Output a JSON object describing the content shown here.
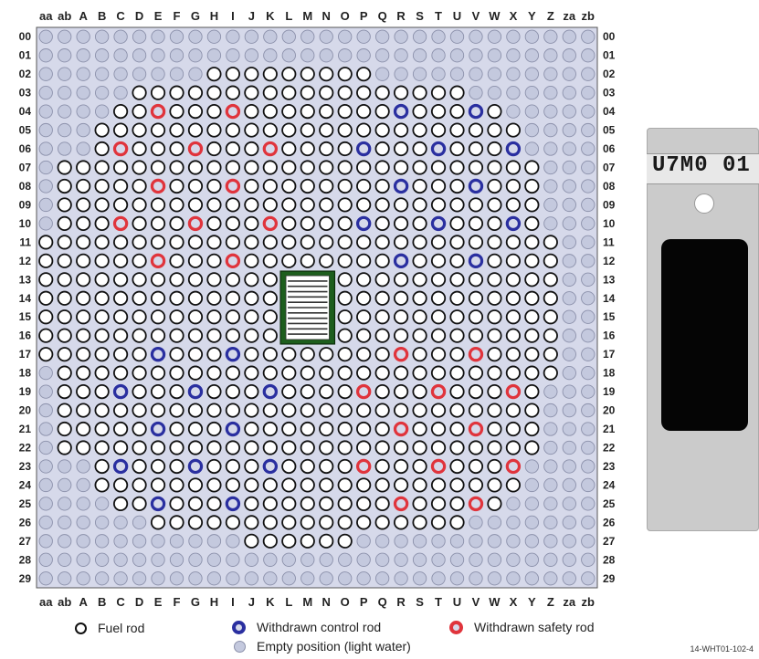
{
  "columns": [
    "aa",
    "ab",
    "A",
    "B",
    "C",
    "D",
    "E",
    "F",
    "G",
    "H",
    "I",
    "J",
    "K",
    "L",
    "M",
    "N",
    "O",
    "P",
    "Q",
    "R",
    "S",
    "T",
    "U",
    "V",
    "W",
    "X",
    "Y",
    "Z",
    "za",
    "zb"
  ],
  "rows": [
    "00",
    "01",
    "02",
    "03",
    "04",
    "05",
    "06",
    "07",
    "08",
    "09",
    "10",
    "11",
    "12",
    "13",
    "14",
    "15",
    "16",
    "17",
    "18",
    "19",
    "20",
    "21",
    "22",
    "23",
    "24",
    "25",
    "26",
    "27",
    "28",
    "29"
  ],
  "fuel_span_by_row": {
    "02": [
      "H",
      "P"
    ],
    "03": [
      "D",
      "U"
    ],
    "04": [
      "C",
      "W"
    ],
    "05": [
      "B",
      "X"
    ],
    "06": [
      "B",
      "X"
    ],
    "07": [
      "ab",
      "Y"
    ],
    "08": [
      "ab",
      "Y"
    ],
    "09": [
      "ab",
      "Y"
    ],
    "10": [
      "ab",
      "Y"
    ],
    "11": [
      "aa",
      "Z"
    ],
    "12": [
      "aa",
      "Z"
    ],
    "13": [
      "aa",
      "Z"
    ],
    "14": [
      "aa",
      "Z"
    ],
    "15": [
      "aa",
      "Z"
    ],
    "16": [
      "aa",
      "Z"
    ],
    "17": [
      "aa",
      "Z"
    ],
    "18": [
      "ab",
      "Z"
    ],
    "19": [
      "ab",
      "Y"
    ],
    "20": [
      "ab",
      "Y"
    ],
    "21": [
      "ab",
      "Y"
    ],
    "22": [
      "ab",
      "Y"
    ],
    "23": [
      "B",
      "X"
    ],
    "24": [
      "B",
      "X"
    ],
    "25": [
      "C",
      "W"
    ],
    "26": [
      "E",
      "U"
    ],
    "27": [
      "J",
      "O"
    ]
  },
  "withdrawn_control_rods": [
    "R04",
    "V04",
    "P06",
    "T06",
    "X06",
    "R08",
    "V08",
    "P10",
    "T10",
    "X10",
    "R12",
    "V12",
    "E17",
    "I17",
    "C19",
    "G19",
    "K19",
    "E21",
    "I21",
    "C23",
    "G23",
    "K23",
    "E25",
    "I25"
  ],
  "withdrawn_safety_rods": [
    "E04",
    "I04",
    "C06",
    "G06",
    "K06",
    "E08",
    "I08",
    "C10",
    "G10",
    "K10",
    "E12",
    "I12",
    "R17",
    "V17",
    "P19",
    "T19",
    "X19",
    "R21",
    "V21",
    "P23",
    "T23",
    "X23",
    "R25",
    "V25"
  ],
  "central_irradiation_channel": {
    "columns": [
      "L",
      "N"
    ],
    "rows": [
      "13",
      "16"
    ]
  },
  "colors": {
    "grid_background": "#d6d9ea",
    "empty_position": "#c4c9de",
    "fuel_rod": "#ffffff",
    "control_rod": "#2a2fa0",
    "safety_rod": "#e0343c",
    "channel_frame": "#1d5e1d"
  },
  "legend": {
    "fuel_rod": "Fuel rod",
    "control_rod": "Withdrawn control rod",
    "safety_rod": "Withdrawn safety rod",
    "empty_position": "Empty position (light water)"
  },
  "figure_id": "14-WHT01-102-4",
  "photo": {
    "tag_text": "U7M0 01"
  }
}
